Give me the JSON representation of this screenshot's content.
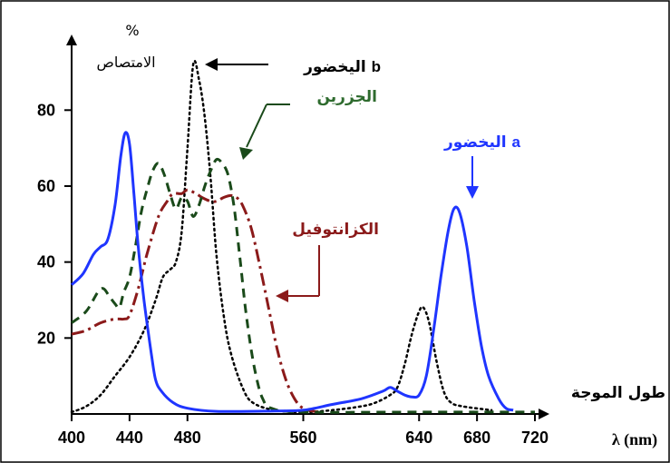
{
  "chart_data": {
    "type": "line",
    "ylabel_symbol": "%",
    "ylabel": "الامتصاص",
    "xlabel": "طول الموجة",
    "xunit": "λ (nm)",
    "xlim": [
      400,
      725
    ],
    "ylim": [
      0,
      98
    ],
    "x_ticks": [
      400,
      440,
      480,
      560,
      640,
      680,
      720
    ],
    "y_ticks": [
      20,
      40,
      60,
      80
    ],
    "series": [
      {
        "name": "اليخضور a",
        "color": "#1f35ff",
        "dash": "solid",
        "points": [
          [
            400,
            34
          ],
          [
            408,
            37
          ],
          [
            415,
            42
          ],
          [
            420,
            44
          ],
          [
            425,
            46
          ],
          [
            430,
            55
          ],
          [
            434,
            68
          ],
          [
            437,
            74
          ],
          [
            440,
            71
          ],
          [
            443,
            58
          ],
          [
            446,
            44
          ],
          [
            450,
            30
          ],
          [
            455,
            16
          ],
          [
            458,
            9
          ],
          [
            462,
            6
          ],
          [
            470,
            3
          ],
          [
            480,
            1.5
          ],
          [
            500,
            0.7
          ],
          [
            540,
            0.8
          ],
          [
            560,
            1
          ],
          [
            580,
            2.5
          ],
          [
            600,
            4
          ],
          [
            615,
            6
          ],
          [
            620,
            7
          ],
          [
            625,
            6
          ],
          [
            630,
            5
          ],
          [
            635,
            4.5
          ],
          [
            640,
            5
          ],
          [
            645,
            10
          ],
          [
            650,
            22
          ],
          [
            655,
            36
          ],
          [
            660,
            48
          ],
          [
            664,
            54
          ],
          [
            668,
            53
          ],
          [
            673,
            44
          ],
          [
            678,
            30
          ],
          [
            683,
            18
          ],
          [
            688,
            10
          ],
          [
            695,
            4
          ],
          [
            700,
            1.5
          ],
          [
            705,
            1
          ]
        ]
      },
      {
        "name": "اليخضور b",
        "color": "#000000",
        "dash": "2 4",
        "points": [
          [
            400,
            0.5
          ],
          [
            410,
            2
          ],
          [
            420,
            5
          ],
          [
            430,
            10
          ],
          [
            440,
            15
          ],
          [
            450,
            22
          ],
          [
            458,
            30
          ],
          [
            463,
            36
          ],
          [
            468,
            38
          ],
          [
            472,
            40
          ],
          [
            476,
            48
          ],
          [
            480,
            70
          ],
          [
            484,
            92
          ],
          [
            488,
            88
          ],
          [
            492,
            78
          ],
          [
            496,
            62
          ],
          [
            500,
            42
          ],
          [
            505,
            26
          ],
          [
            510,
            16
          ],
          [
            518,
            7
          ],
          [
            525,
            3
          ],
          [
            540,
            1
          ],
          [
            560,
            0.5
          ],
          [
            580,
            1
          ],
          [
            600,
            2
          ],
          [
            610,
            3
          ],
          [
            620,
            5
          ],
          [
            625,
            7
          ],
          [
            630,
            13
          ],
          [
            635,
            21
          ],
          [
            640,
            27
          ],
          [
            643,
            28
          ],
          [
            647,
            24
          ],
          [
            652,
            14
          ],
          [
            657,
            6
          ],
          [
            662,
            3
          ],
          [
            670,
            2
          ],
          [
            690,
            1
          ]
        ]
      },
      {
        "name": "الجزرين",
        "color": "#1a4a1a",
        "dash": "10 7",
        "points": [
          [
            400,
            24
          ],
          [
            410,
            27
          ],
          [
            418,
            32
          ],
          [
            422,
            33
          ],
          [
            426,
            31
          ],
          [
            430,
            29
          ],
          [
            433,
            28
          ],
          [
            436,
            32
          ],
          [
            440,
            36
          ],
          [
            444,
            44
          ],
          [
            448,
            53
          ],
          [
            452,
            59
          ],
          [
            456,
            64
          ],
          [
            460,
            66
          ],
          [
            464,
            63
          ],
          [
            468,
            58
          ],
          [
            472,
            54
          ],
          [
            476,
            57
          ],
          [
            480,
            56
          ],
          [
            484,
            52
          ],
          [
            488,
            55
          ],
          [
            492,
            60
          ],
          [
            496,
            64
          ],
          [
            500,
            67
          ],
          [
            504,
            66
          ],
          [
            508,
            63
          ],
          [
            512,
            55
          ],
          [
            516,
            42
          ],
          [
            520,
            28
          ],
          [
            524,
            17
          ],
          [
            528,
            9
          ],
          [
            532,
            4
          ],
          [
            538,
            1.5
          ],
          [
            560,
            0.5
          ],
          [
            640,
            0.5
          ],
          [
            720,
            0.5
          ]
        ]
      },
      {
        "name": "الكزانتوفيل",
        "color": "#8b1a1a",
        "dash": "14 5 3 5",
        "points": [
          [
            400,
            21
          ],
          [
            410,
            22
          ],
          [
            420,
            24
          ],
          [
            430,
            25
          ],
          [
            436,
            25
          ],
          [
            440,
            26
          ],
          [
            446,
            33
          ],
          [
            452,
            42
          ],
          [
            460,
            52
          ],
          [
            466,
            56
          ],
          [
            470,
            58
          ],
          [
            476,
            58
          ],
          [
            480,
            59
          ],
          [
            486,
            58
          ],
          [
            490,
            57
          ],
          [
            496,
            56
          ],
          [
            500,
            56
          ],
          [
            505,
            57
          ],
          [
            510,
            57.5
          ],
          [
            514,
            57
          ],
          [
            518,
            55
          ],
          [
            524,
            49
          ],
          [
            530,
            39
          ],
          [
            536,
            28
          ],
          [
            542,
            17
          ],
          [
            548,
            9
          ],
          [
            554,
            4
          ],
          [
            560,
            1.5
          ],
          [
            570,
            0.5
          ]
        ]
      }
    ],
    "annotations": [
      {
        "text": "اليخضور",
        "suffix": "b"
      },
      {
        "text": "الجزرين"
      },
      {
        "text": "اليخضور",
        "suffix": "a"
      },
      {
        "text": "الكزانتوفيل"
      }
    ]
  }
}
